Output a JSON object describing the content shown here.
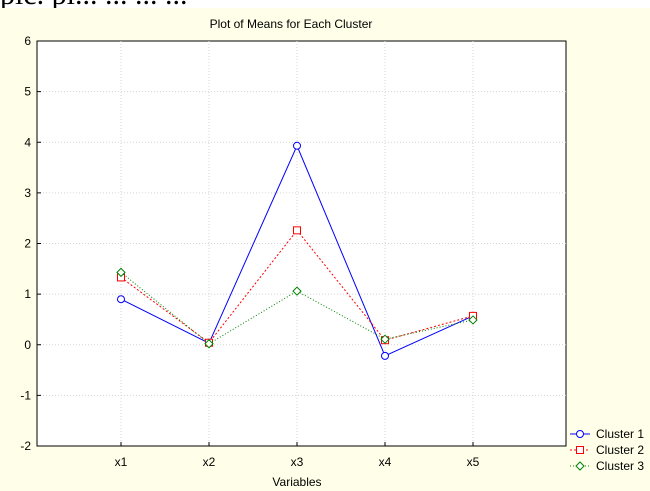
{
  "page": {
    "top_text_fragment": "pic.  pl... ... ... ..."
  },
  "chart_data": {
    "type": "line",
    "title": "Plot of Means for Each Cluster",
    "xlabel": "Variables",
    "ylabel": "",
    "categories": [
      "x1",
      "x2",
      "x3",
      "x4",
      "x5"
    ],
    "ylim": [
      -2,
      6
    ],
    "yticks": [
      "-2",
      "-1",
      "0",
      "1",
      "2",
      "3",
      "4",
      "5",
      "6"
    ],
    "grid": true,
    "legend_position": "bottom-right",
    "series": [
      {
        "name": "Cluster  1",
        "values": [
          0.9,
          0.03,
          3.93,
          -0.22,
          0.57
        ],
        "color": "#0000ff",
        "marker": "circle",
        "dash": "solid"
      },
      {
        "name": "Cluster  2",
        "values": [
          1.33,
          0.04,
          2.26,
          0.09,
          0.57
        ],
        "color": "#ff0000",
        "marker": "square",
        "dash": "dotted"
      },
      {
        "name": "Cluster  3",
        "values": [
          1.43,
          0.02,
          1.06,
          0.11,
          0.49
        ],
        "color": "#008000",
        "marker": "diamond",
        "dash": "dotted"
      }
    ]
  }
}
